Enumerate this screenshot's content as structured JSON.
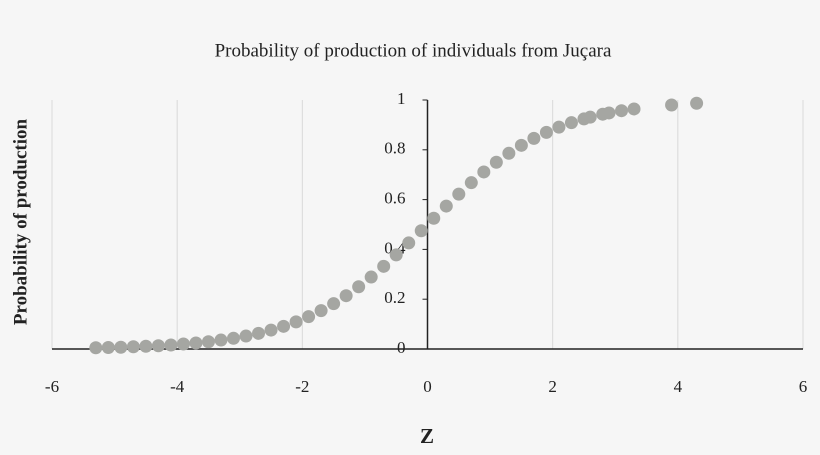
{
  "chart_data": {
    "type": "scatter",
    "title": "Probability of production of individuals from Juçara",
    "x_label": "Z",
    "y_label": "Probability of production",
    "color": "#a5a6a2",
    "grid": true,
    "xlim": [
      -6,
      6
    ],
    "xticks": [
      -6,
      -4,
      -2,
      0,
      2,
      4,
      6
    ],
    "ylim": [
      0,
      1
    ],
    "yticks": [
      0,
      0.2,
      0.4,
      0.6,
      0.8,
      1
    ],
    "x": [
      -5.3,
      -5.1,
      -4.9,
      -4.7,
      -4.5,
      -4.3,
      -4.1,
      -3.9,
      -3.7,
      -3.5,
      -3.3,
      -3.1,
      -2.9,
      -2.7,
      -2.5,
      -2.3,
      -2.1,
      -1.9,
      -1.7,
      -1.5,
      -1.3,
      -1.1,
      -0.9,
      -0.7,
      -0.5,
      -0.3,
      -0.1,
      0.1,
      0.3,
      0.5,
      0.7,
      0.9,
      1.1,
      1.3,
      1.5,
      1.7,
      1.9,
      2.1,
      2.3,
      2.5,
      2.6,
      2.8,
      2.9,
      3.1,
      3.3,
      3.9,
      4.3
    ],
    "values": [
      0.005,
      0.006,
      0.007,
      0.009,
      0.011,
      0.013,
      0.016,
      0.02,
      0.024,
      0.029,
      0.036,
      0.043,
      0.052,
      0.063,
      0.076,
      0.091,
      0.109,
      0.13,
      0.154,
      0.182,
      0.214,
      0.25,
      0.289,
      0.332,
      0.378,
      0.426,
      0.475,
      0.525,
      0.574,
      0.622,
      0.668,
      0.711,
      0.75,
      0.786,
      0.818,
      0.846,
      0.87,
      0.891,
      0.909,
      0.924,
      0.931,
      0.943,
      0.948,
      0.957,
      0.964,
      0.98,
      0.987
    ]
  }
}
